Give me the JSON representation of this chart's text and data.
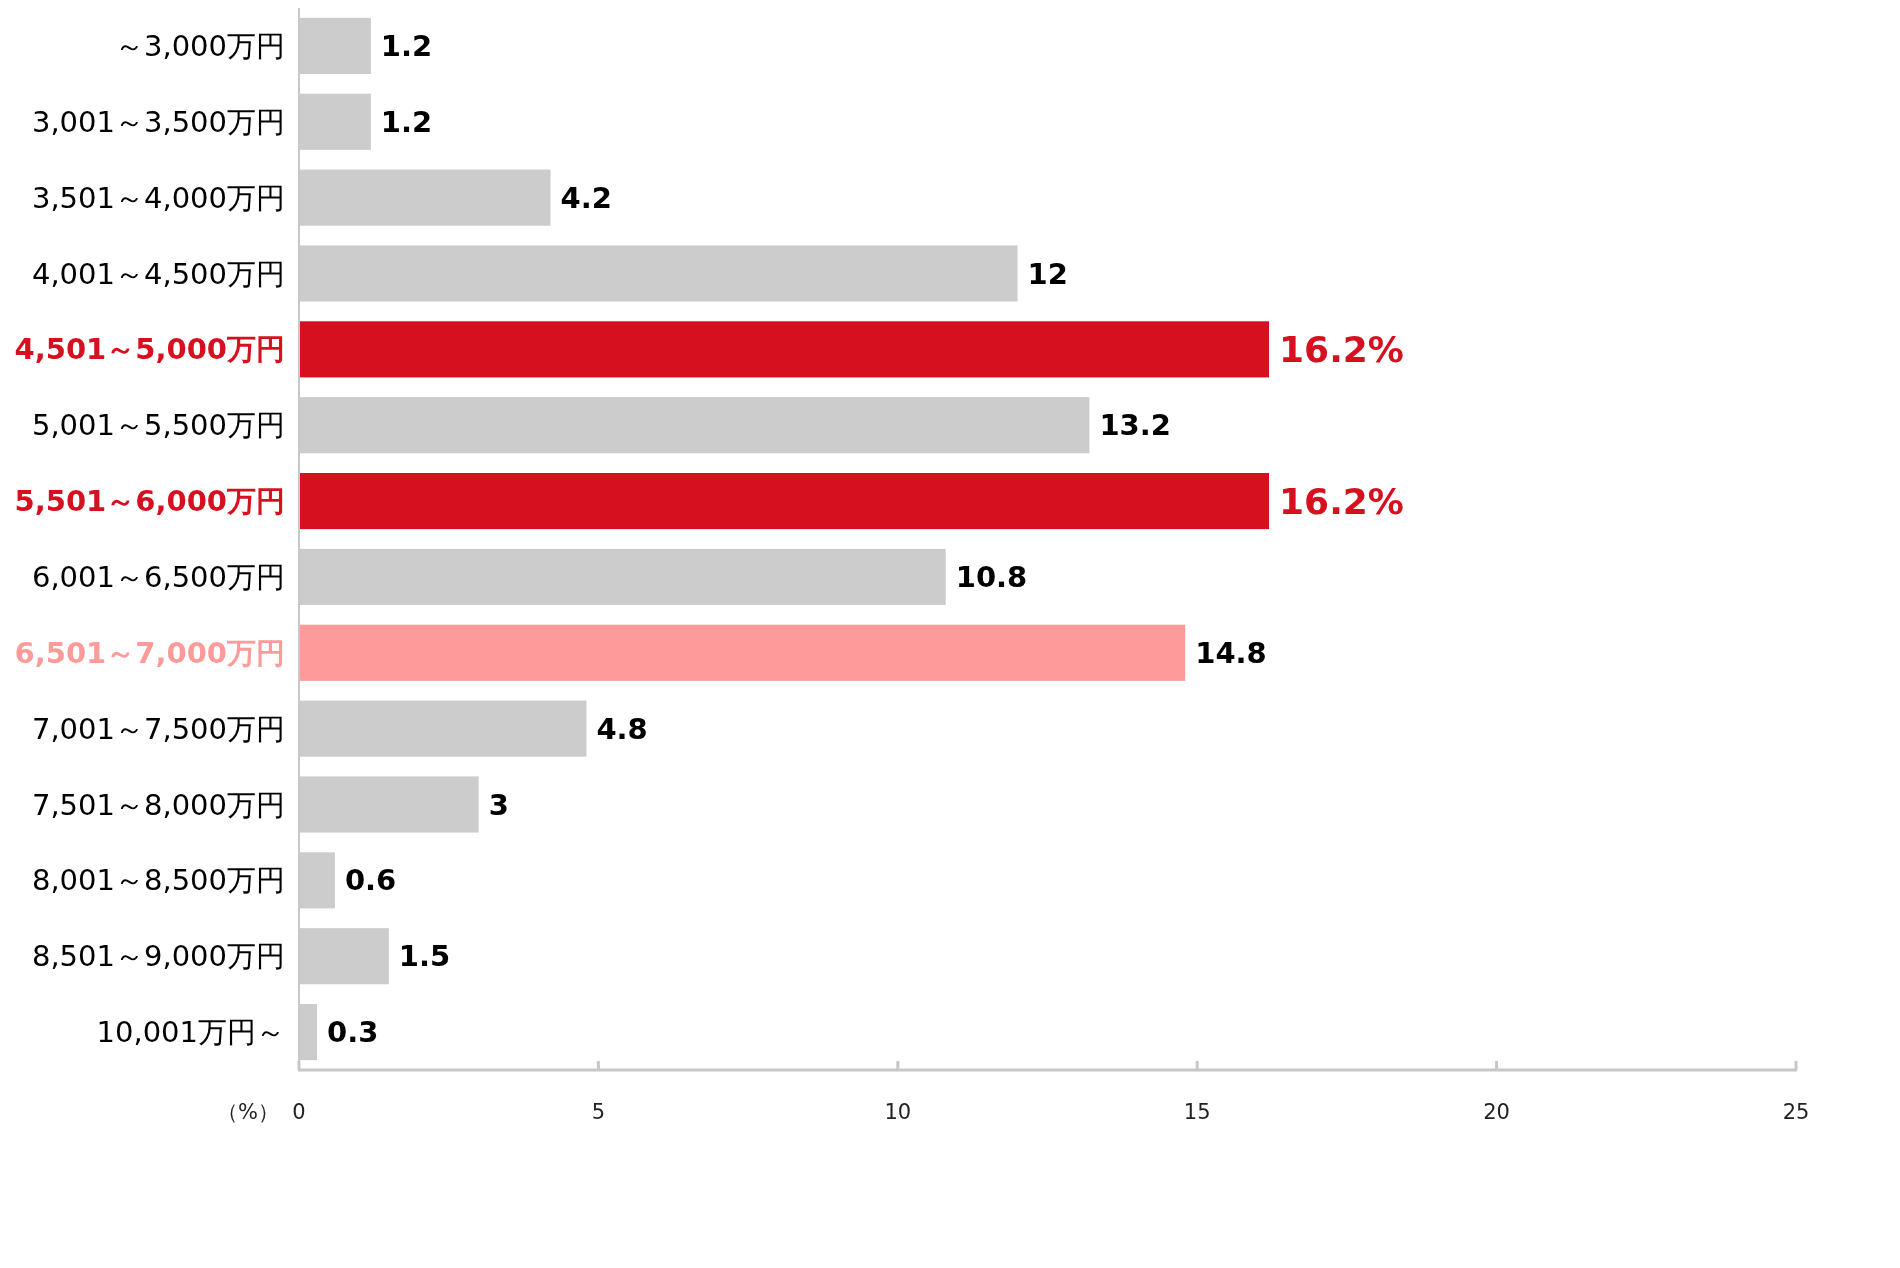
{
  "chart_data": {
    "type": "bar",
    "orientation": "horizontal",
    "categories": [
      "～3,000万円",
      "3,001～3,500万円",
      "3,501～4,000万円",
      "4,001～4,500万円",
      "4,501～5,000万円",
      "5,001～5,500万円",
      "5,501～6,000万円",
      "6,001～6,500万円",
      "6,501～7,000万円",
      "7,001～7,500万円",
      "7,501～8,000万円",
      "8,001～8,500万円",
      "8,501～9,000万円",
      "10,001万円～"
    ],
    "values": [
      1.2,
      1.2,
      4.2,
      12,
      16.2,
      13.2,
      16.2,
      10.8,
      14.8,
      4.8,
      3,
      0.6,
      1.5,
      0.3
    ],
    "colors": [
      "#cccccc",
      "#cccccc",
      "#cccccc",
      "#cccccc",
      "#d7101f",
      "#cccccc",
      "#d7101f",
      "#cccccc",
      "#fd9b9b",
      "#cccccc",
      "#cccccc",
      "#cccccc",
      "#cccccc",
      "#cccccc"
    ],
    "value_labels": [
      "1.2",
      "1.2",
      "4.2",
      "12",
      "16.2%",
      "13.2",
      "16.2%",
      "10.8",
      "14.8",
      "4.8",
      "3",
      "0.6",
      "1.5",
      "0.3"
    ],
    "xlabel": "（%）",
    "xlim": [
      0,
      25
    ],
    "xticks": [
      0,
      5,
      10,
      15,
      20,
      25
    ]
  }
}
